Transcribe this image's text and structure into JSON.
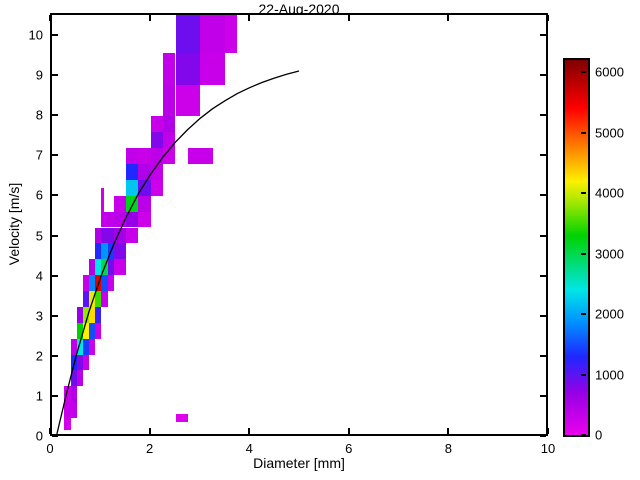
{
  "chart_data": {
    "type": "heatmap",
    "title": "22-Aug-2020",
    "xlabel": "Diameter [mm]",
    "ylabel": "Velocity [m/s]",
    "xlim": [
      0,
      10
    ],
    "ylim": [
      0,
      10.55
    ],
    "x_ticks": [
      0,
      2,
      4,
      6,
      8,
      10
    ],
    "y_ticks": [
      0,
      1,
      2,
      3,
      4,
      5,
      6,
      7,
      8,
      9,
      10
    ],
    "grid": false,
    "legend": false,
    "colorbar": {
      "position": "right",
      "range": [
        0,
        6200
      ],
      "ticks": [
        0,
        1000,
        2000,
        3000,
        4000,
        5000,
        6000
      ]
    },
    "colormap_stops": [
      [
        0,
        "#ec00ec"
      ],
      [
        700,
        "#9600e6"
      ],
      [
        1300,
        "#1e28ff"
      ],
      [
        1900,
        "#0096ff"
      ],
      [
        2400,
        "#00e6e6"
      ],
      [
        3300,
        "#00d200"
      ],
      [
        3800,
        "#96e600"
      ],
      [
        4200,
        "#fff000"
      ],
      [
        4700,
        "#ff8c00"
      ],
      [
        5400,
        "#ff0000"
      ],
      [
        6200,
        "#800000"
      ]
    ],
    "cell_format": [
      "d_min_mm",
      "d_max_mm",
      "v_min_ms",
      "v_max_ms",
      "count"
    ],
    "cells": [
      [
        0.25,
        0.375,
        0.1,
        0.4,
        200
      ],
      [
        0.25,
        0.375,
        0.4,
        0.8,
        300
      ],
      [
        0.25,
        0.375,
        0.8,
        1.2,
        250
      ],
      [
        0.375,
        0.5,
        0.4,
        0.8,
        350
      ],
      [
        0.375,
        0.5,
        0.8,
        1.2,
        500
      ],
      [
        0.375,
        0.5,
        1.2,
        1.6,
        900
      ],
      [
        0.375,
        0.5,
        1.6,
        2.0,
        1300
      ],
      [
        0.375,
        0.5,
        2.0,
        2.4,
        400
      ],
      [
        0.5,
        0.625,
        1.2,
        1.6,
        400
      ],
      [
        0.5,
        0.625,
        1.6,
        2.0,
        800
      ],
      [
        0.5,
        0.625,
        2.0,
        2.4,
        2400
      ],
      [
        0.5,
        0.625,
        2.4,
        2.8,
        3300
      ],
      [
        0.5,
        0.625,
        2.8,
        3.2,
        700
      ],
      [
        0.625,
        0.75,
        1.6,
        2.0,
        300
      ],
      [
        0.625,
        0.75,
        2.0,
        2.4,
        1400
      ],
      [
        0.625,
        0.75,
        2.4,
        2.8,
        4200
      ],
      [
        0.625,
        0.75,
        2.8,
        3.2,
        3800
      ],
      [
        0.625,
        0.75,
        3.2,
        3.6,
        1000
      ],
      [
        0.625,
        0.75,
        3.6,
        4.0,
        300
      ],
      [
        0.75,
        0.875,
        2.0,
        2.4,
        250
      ],
      [
        0.75,
        0.875,
        2.4,
        2.8,
        1500
      ],
      [
        0.75,
        0.875,
        2.8,
        3.2,
        4300
      ],
      [
        0.75,
        0.875,
        3.2,
        3.6,
        4100
      ],
      [
        0.75,
        0.875,
        3.6,
        4.0,
        1800
      ],
      [
        0.75,
        0.875,
        4.0,
        4.4,
        500
      ],
      [
        0.875,
        1.0,
        2.4,
        2.8,
        300
      ],
      [
        0.875,
        1.0,
        2.8,
        3.2,
        1200
      ],
      [
        0.875,
        1.0,
        3.2,
        3.6,
        3500
      ],
      [
        0.875,
        1.0,
        3.6,
        4.0,
        5600
      ],
      [
        0.875,
        1.0,
        4.0,
        4.4,
        2400
      ],
      [
        0.875,
        1.0,
        4.4,
        4.8,
        1300
      ],
      [
        0.875,
        1.0,
        4.8,
        5.2,
        500
      ],
      [
        1.0,
        1.125,
        3.2,
        3.6,
        300
      ],
      [
        1.0,
        1.125,
        3.6,
        4.0,
        1500
      ],
      [
        1.0,
        1.125,
        4.0,
        4.4,
        3000
      ],
      [
        1.0,
        1.125,
        4.4,
        4.8,
        1900
      ],
      [
        1.0,
        1.125,
        4.8,
        5.2,
        800
      ],
      [
        1.0,
        1.125,
        5.2,
        5.6,
        350
      ],
      [
        1.0,
        1.0625,
        5.6,
        6.2,
        250
      ],
      [
        1.125,
        1.25,
        3.6,
        4.0,
        300
      ],
      [
        1.125,
        1.25,
        4.0,
        4.4,
        900
      ],
      [
        1.125,
        1.25,
        4.4,
        4.8,
        1400
      ],
      [
        1.125,
        1.25,
        4.8,
        5.2,
        800
      ],
      [
        1.125,
        1.25,
        5.2,
        5.6,
        350
      ],
      [
        1.25,
        1.5,
        4.0,
        4.4,
        300
      ],
      [
        1.25,
        1.5,
        4.4,
        4.8,
        800
      ],
      [
        1.25,
        1.5,
        4.8,
        5.2,
        600
      ],
      [
        1.25,
        1.5,
        5.2,
        5.6,
        400
      ],
      [
        1.25,
        1.5,
        5.6,
        6.0,
        300
      ],
      [
        1.5,
        1.75,
        4.8,
        5.2,
        300
      ],
      [
        1.5,
        1.75,
        5.2,
        5.6,
        700
      ],
      [
        1.5,
        1.75,
        5.6,
        6.0,
        3200
      ],
      [
        1.5,
        1.75,
        6.0,
        6.4,
        2200
      ],
      [
        1.5,
        1.75,
        6.4,
        6.8,
        1300
      ],
      [
        1.5,
        1.75,
        6.8,
        7.2,
        350
      ],
      [
        1.75,
        2.0,
        5.2,
        5.6,
        250
      ],
      [
        1.75,
        2.0,
        5.6,
        6.0,
        400
      ],
      [
        1.75,
        2.0,
        6.0,
        6.4,
        900
      ],
      [
        1.75,
        2.0,
        6.4,
        6.8,
        500
      ],
      [
        1.75,
        2.0,
        6.8,
        7.2,
        300
      ],
      [
        2.0,
        2.25,
        6.0,
        6.4,
        250
      ],
      [
        2.0,
        2.25,
        6.4,
        6.8,
        350
      ],
      [
        2.0,
        2.25,
        6.8,
        7.2,
        400
      ],
      [
        2.0,
        2.25,
        7.2,
        7.6,
        800
      ],
      [
        2.0,
        2.25,
        7.6,
        8.0,
        300
      ],
      [
        2.25,
        2.5,
        6.8,
        7.2,
        250
      ],
      [
        2.25,
        2.5,
        7.2,
        7.6,
        350
      ],
      [
        2.25,
        2.5,
        7.6,
        8.0,
        500
      ],
      [
        2.25,
        2.5,
        8.0,
        8.8,
        400
      ],
      [
        2.25,
        2.5,
        8.8,
        9.6,
        350
      ],
      [
        2.5,
        3.0,
        8.0,
        8.8,
        250
      ],
      [
        2.5,
        3.0,
        8.8,
        9.6,
        800
      ],
      [
        2.5,
        3.0,
        9.6,
        10.55,
        900
      ],
      [
        3.0,
        3.5,
        8.8,
        9.6,
        300
      ],
      [
        3.0,
        3.5,
        9.6,
        10.55,
        350
      ],
      [
        3.5,
        3.75,
        9.6,
        10.55,
        250
      ],
      [
        2.75,
        3.25,
        6.8,
        7.2,
        300
      ],
      [
        2.5,
        2.75,
        0.3,
        0.5,
        150
      ]
    ],
    "fit_curve": {
      "points": [
        [
          0.1,
          0.0
        ],
        [
          0.3,
          1.05
        ],
        [
          0.5,
          2.02
        ],
        [
          0.75,
          3.08
        ],
        [
          1.0,
          4.0
        ],
        [
          1.25,
          4.78
        ],
        [
          1.5,
          5.46
        ],
        [
          1.75,
          6.05
        ],
        [
          2.0,
          6.55
        ],
        [
          2.25,
          6.98
        ],
        [
          2.5,
          7.35
        ],
        [
          2.75,
          7.67
        ],
        [
          3.0,
          7.95
        ],
        [
          3.25,
          8.19
        ],
        [
          3.5,
          8.39
        ],
        [
          3.75,
          8.57
        ],
        [
          4.0,
          8.72
        ],
        [
          4.25,
          8.85
        ],
        [
          4.5,
          8.96
        ],
        [
          4.75,
          9.06
        ],
        [
          5.0,
          9.14
        ]
      ],
      "color": "#000000"
    }
  }
}
